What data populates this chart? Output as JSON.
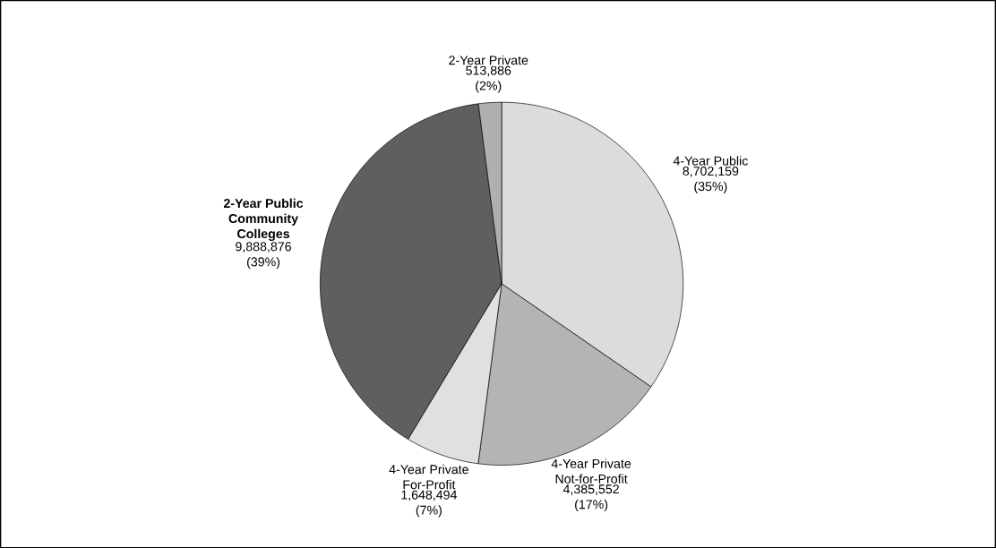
{
  "chart_data": {
    "type": "pie",
    "categories": [
      "4-Year Public",
      "4-Year Private Not-for-Profit",
      "4-Year Private For-Profit",
      "2-Year Public Community Colleges",
      "2-Year Private"
    ],
    "values": [
      8702159,
      4385552,
      1648494,
      9888876,
      513886
    ],
    "colors": [
      "#dcdcdc",
      "#b4b4b4",
      "#e0e0e0",
      "#5f5f5f",
      "#b0b0b0"
    ],
    "value_labels": [
      "8,702,159 (35%)",
      "4,385,552 (17%)",
      "1,648,494 (7%)",
      "9,888,876 (39%)",
      "513,886 (2%)"
    ]
  }
}
